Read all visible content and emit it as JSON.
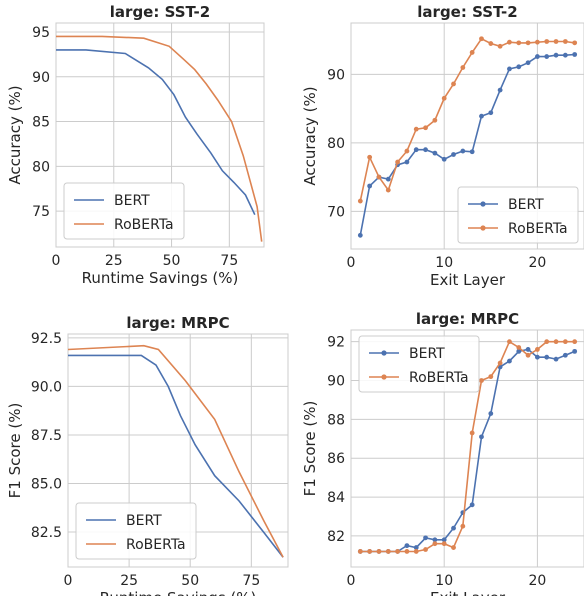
{
  "colors": {
    "BERT": "#4c72b0",
    "RoBERTa": "#dd8452"
  },
  "chart_data": [
    {
      "type": "line",
      "title": "large: SST-2",
      "xlabel": "Runtime Savings (%)",
      "ylabel": "Accuracy (%)",
      "xlim": [
        0,
        90
      ],
      "ylim": [
        71,
        96
      ],
      "xticks": [
        0,
        25,
        50,
        75
      ],
      "yticks": [
        75,
        80,
        85,
        90,
        95
      ],
      "markers": false,
      "legend": "lower-left",
      "series": [
        {
          "name": "BERT",
          "points": [
            [
              0,
              93.0
            ],
            [
              13,
              93.0
            ],
            [
              30,
              92.6
            ],
            [
              40,
              91.0
            ],
            [
              46,
              89.7
            ],
            [
              51,
              88.0
            ],
            [
              56,
              85.5
            ],
            [
              61,
              83.6
            ],
            [
              67,
              81.5
            ],
            [
              72,
              79.5
            ],
            [
              77,
              78.2
            ],
            [
              82,
              76.8
            ],
            [
              86,
              74.6
            ]
          ]
        },
        {
          "name": "RoBERTa",
          "points": [
            [
              0,
              94.5
            ],
            [
              20,
              94.5
            ],
            [
              38,
              94.3
            ],
            [
              49,
              93.4
            ],
            [
              55,
              92.0
            ],
            [
              60,
              90.8
            ],
            [
              65,
              89.2
            ],
            [
              70,
              87.4
            ],
            [
              76,
              85.0
            ],
            [
              81,
              81.2
            ],
            [
              87,
              75.5
            ],
            [
              89,
              71.6
            ]
          ]
        }
      ]
    },
    {
      "type": "line",
      "title": "large: SST-2",
      "xlabel": "Exit Layer",
      "ylabel": "Accuracy (%)",
      "xlim": [
        0,
        25
      ],
      "ylim": [
        64.5,
        97.5
      ],
      "xticks": [
        0,
        10,
        20
      ],
      "yticks": [
        70,
        80,
        90
      ],
      "markers": true,
      "legend": "lower-right",
      "series": [
        {
          "name": "BERT",
          "x": [
            1,
            2,
            3,
            4,
            5,
            6,
            7,
            8,
            9,
            10,
            11,
            12,
            13,
            14,
            15,
            16,
            17,
            18,
            19,
            20,
            21,
            22,
            23,
            24
          ],
          "values": [
            66.5,
            73.7,
            75.0,
            74.7,
            76.8,
            77.2,
            79.0,
            79.0,
            78.5,
            77.6,
            78.3,
            78.8,
            78.7,
            83.9,
            84.4,
            87.7,
            90.8,
            91.1,
            91.7,
            92.6,
            92.6,
            92.8,
            92.8,
            92.9
          ]
        },
        {
          "name": "RoBERTa",
          "x": [
            1,
            2,
            3,
            4,
            5,
            6,
            7,
            8,
            9,
            10,
            11,
            12,
            13,
            14,
            15,
            16,
            17,
            18,
            19,
            20,
            21,
            22,
            23,
            24
          ],
          "values": [
            71.5,
            77.9,
            75.0,
            73.1,
            77.2,
            78.8,
            82.0,
            82.2,
            83.3,
            86.5,
            88.6,
            91.0,
            93.2,
            95.2,
            94.5,
            94.1,
            94.7,
            94.6,
            94.6,
            94.7,
            94.8,
            94.8,
            94.8,
            94.6
          ]
        }
      ]
    },
    {
      "type": "line",
      "title": "large: MRPC",
      "xlabel": "Runtime Savings (%)",
      "ylabel": "F1 Score (%)",
      "xlim": [
        0,
        90
      ],
      "ylim": [
        80.7,
        92.7
      ],
      "xticks": [
        0,
        25,
        50,
        75
      ],
      "yticks": [
        82.5,
        85.0,
        87.5,
        90.0,
        92.5
      ],
      "yticklabels": [
        "82.5",
        "85.0",
        "87.5",
        "90.0",
        "92.5"
      ],
      "markers": false,
      "legend": "lower-left",
      "series": [
        {
          "name": "BERT",
          "points": [
            [
              0,
              91.6
            ],
            [
              30,
              91.6
            ],
            [
              36,
              91.1
            ],
            [
              41,
              90.0
            ],
            [
              46,
              88.5
            ],
            [
              52,
              87.0
            ],
            [
              60,
              85.4
            ],
            [
              70,
              84.1
            ],
            [
              80,
              82.5
            ],
            [
              88,
              81.2
            ]
          ]
        },
        {
          "name": "RoBERTa",
          "points": [
            [
              0,
              91.9
            ],
            [
              31,
              92.1
            ],
            [
              37,
              91.9
            ],
            [
              48,
              90.3
            ],
            [
              60,
              88.3
            ],
            [
              70,
              85.6
            ],
            [
              80,
              83.1
            ],
            [
              88,
              81.2
            ]
          ]
        }
      ]
    },
    {
      "type": "line",
      "title": "large: MRPC",
      "xlabel": "Exit Layer",
      "ylabel": "F1 Score (%)",
      "xlim": [
        0,
        25
      ],
      "ylim": [
        80.4,
        92.6
      ],
      "xticks": [
        0,
        10,
        20
      ],
      "yticks": [
        82,
        84,
        86,
        88,
        90,
        92
      ],
      "markers": true,
      "legend": "upper-left",
      "series": [
        {
          "name": "BERT",
          "x": [
            1,
            2,
            3,
            4,
            5,
            6,
            7,
            8,
            9,
            10,
            11,
            12,
            13,
            14,
            15,
            16,
            17,
            18,
            19,
            20,
            21,
            22,
            23,
            24
          ],
          "values": [
            81.2,
            81.2,
            81.2,
            81.2,
            81.2,
            81.5,
            81.4,
            81.9,
            81.8,
            81.8,
            82.4,
            83.2,
            83.6,
            87.1,
            88.3,
            90.7,
            91.0,
            91.5,
            91.6,
            91.2,
            91.2,
            91.1,
            91.3,
            91.5
          ]
        },
        {
          "name": "RoBERTa",
          "x": [
            1,
            2,
            3,
            4,
            5,
            6,
            7,
            8,
            9,
            10,
            11,
            12,
            13,
            14,
            15,
            16,
            17,
            18,
            19,
            20,
            21,
            22,
            23,
            24
          ],
          "values": [
            81.2,
            81.2,
            81.2,
            81.2,
            81.2,
            81.2,
            81.2,
            81.3,
            81.6,
            81.6,
            81.4,
            82.5,
            87.3,
            90.0,
            90.2,
            90.9,
            92.0,
            91.7,
            91.3,
            91.6,
            92.0,
            92.0,
            92.0,
            92.0
          ]
        }
      ]
    }
  ]
}
